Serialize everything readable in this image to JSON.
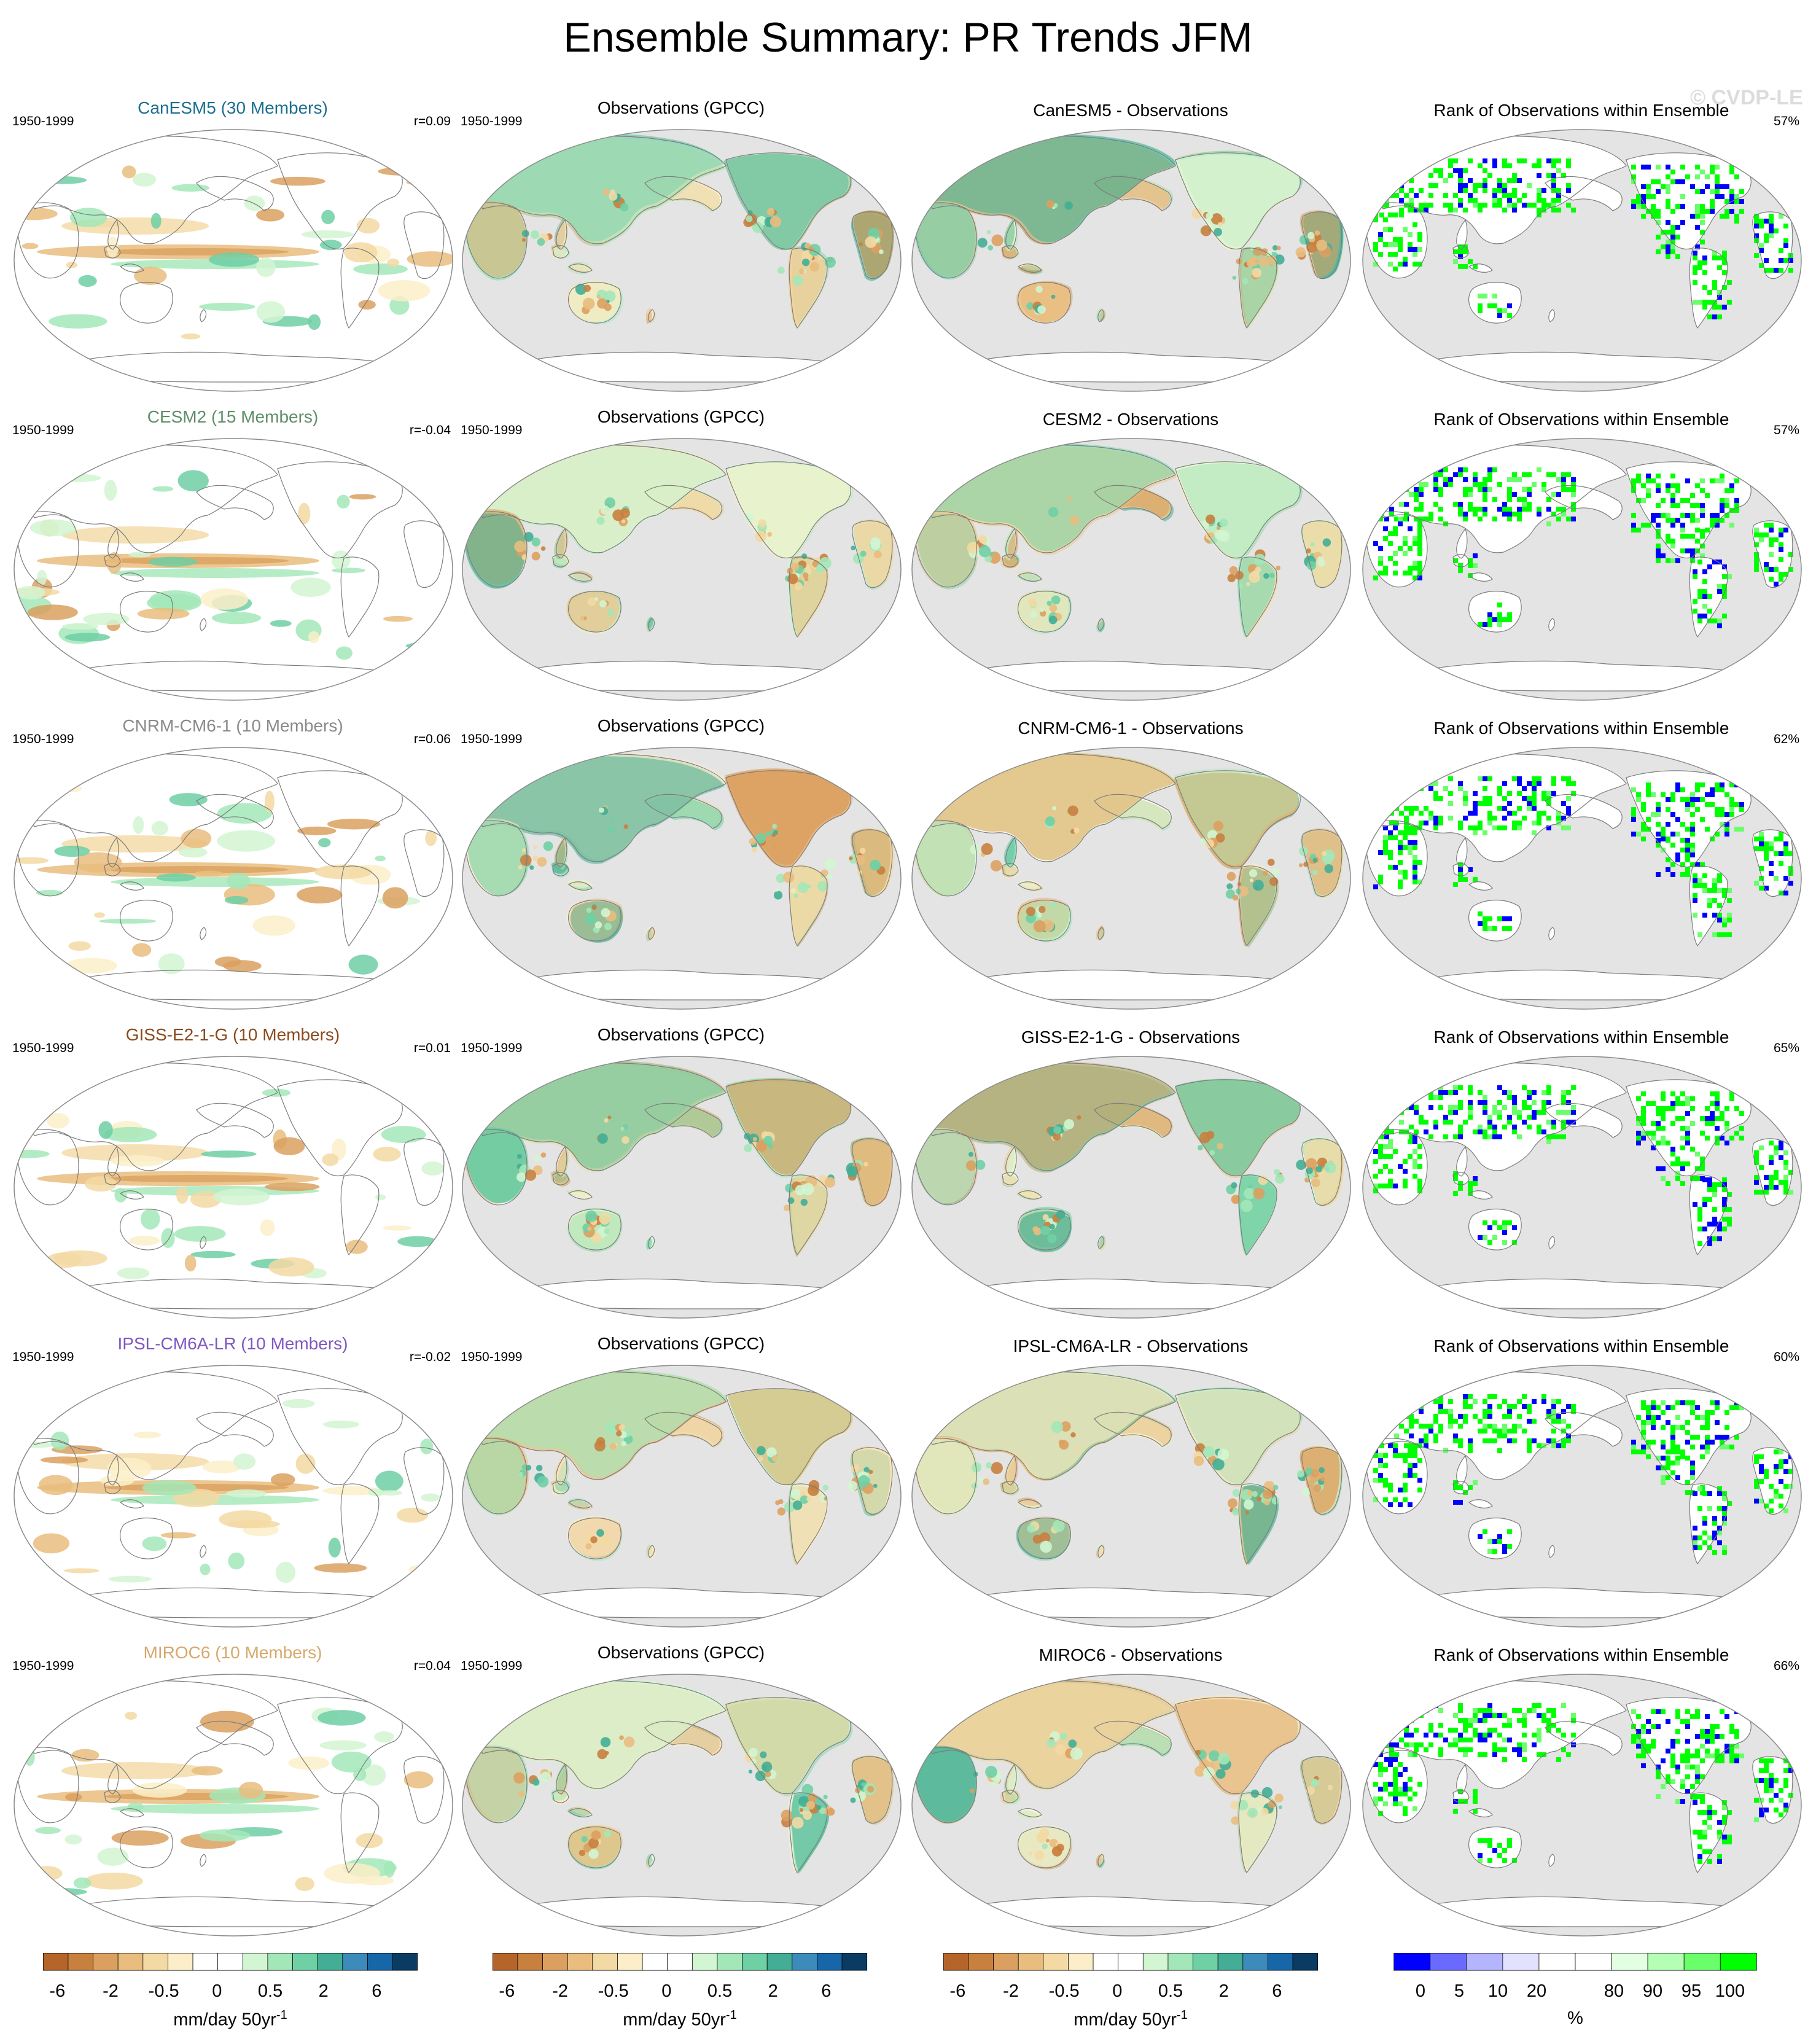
{
  "title": "Ensemble Summary: PR Trends JFM",
  "watermark": "© CVDP-LE",
  "colors": {
    "ocean_gray": "#e4e4e4",
    "coast": "#7c7c7c",
    "dry": [
      "#b5652a",
      "#c8803f",
      "#dba05f",
      "#e9bd7e",
      "#f3d9a3",
      "#fbeec8"
    ],
    "wet": [
      "#d2f5d2",
      "#a3e7b8",
      "#6fcfa5",
      "#43ae95",
      "#3d8bba",
      "#1767a8",
      "#0a3c63"
    ],
    "rank_low": [
      "#0000ff",
      "#6a6aff",
      "#b4b4ff",
      "#e2e2ff"
    ],
    "rank_high": [
      "#e2ffe2",
      "#b4ffb4",
      "#6aff6a",
      "#00ff00"
    ]
  },
  "chart_data": {
    "type": "map",
    "rows": [
      {
        "model": "CanESM5",
        "model_title": "CanESM5 (30 Members)",
        "model_title_color": "#1b6f8f",
        "period": "1950-1999",
        "pattern_corr": "r=0.09",
        "obs_title": "Observations (GPCC)",
        "diff_title": "CanESM5 - Observations",
        "rank_title": "Rank of Observations within Ensemble",
        "rank_pct": "57%"
      },
      {
        "model": "CESM2",
        "model_title": "CESM2 (15 Members)",
        "model_title_color": "#5f8f68",
        "period": "1950-1999",
        "pattern_corr": "r=-0.04",
        "obs_title": "Observations (GPCC)",
        "diff_title": "CESM2 - Observations",
        "rank_title": "Rank of Observations within Ensemble",
        "rank_pct": "57%"
      },
      {
        "model": "CNRM-CM6-1",
        "model_title": "CNRM-CM6-1 (10 Members)",
        "model_title_color": "#8a8a8a",
        "period": "1950-1999",
        "pattern_corr": "r=0.06",
        "obs_title": "Observations (GPCC)",
        "diff_title": "CNRM-CM6-1 - Observations",
        "rank_title": "Rank of Observations within Ensemble",
        "rank_pct": "62%"
      },
      {
        "model": "GISS-E2-1-G",
        "model_title": "GISS-E2-1-G (10 Members)",
        "model_title_color": "#8a4a1c",
        "period": "1950-1999",
        "pattern_corr": "r=0.01",
        "obs_title": "Observations (GPCC)",
        "diff_title": "GISS-E2-1-G - Observations",
        "rank_title": "Rank of Observations within Ensemble",
        "rank_pct": "65%"
      },
      {
        "model": "IPSL-CM6A-LR",
        "model_title": "IPSL-CM6A-LR (10 Members)",
        "model_title_color": "#7e57c2",
        "period": "1950-1999",
        "pattern_corr": "r=-0.02",
        "obs_title": "Observations (GPCC)",
        "diff_title": "IPSL-CM6A-LR - Observations",
        "rank_title": "Rank of Observations within Ensemble",
        "rank_pct": "60%"
      },
      {
        "model": "MIROC6",
        "model_title": "MIROC6 (10 Members)",
        "model_title_color": "#d8a86c",
        "period": "1950-1999",
        "pattern_corr": "r=0.04",
        "obs_title": "Observations (GPCC)",
        "diff_title": "MIROC6 - Observations",
        "rank_title": "Rank of Observations within Ensemble",
        "rank_pct": "66%"
      }
    ],
    "colorbars": [
      {
        "ticks": [
          "-6",
          "-2",
          "-0.5",
          "0",
          "0.5",
          "2",
          "6"
        ],
        "label": "mm/day 50yr",
        "label_sup": "-1"
      },
      {
        "ticks": [
          "-6",
          "-2",
          "-0.5",
          "0",
          "0.5",
          "2",
          "6"
        ],
        "label": "mm/day 50yr",
        "label_sup": "-1"
      },
      {
        "ticks": [
          "-6",
          "-2",
          "-0.5",
          "0",
          "0.5",
          "2",
          "6"
        ],
        "label": "mm/day 50yr",
        "label_sup": "-1"
      },
      {
        "ticks": [
          "0",
          "5",
          "10",
          "20",
          "80",
          "90",
          "95",
          "100"
        ],
        "label": "%",
        "label_sup": ""
      }
    ]
  }
}
